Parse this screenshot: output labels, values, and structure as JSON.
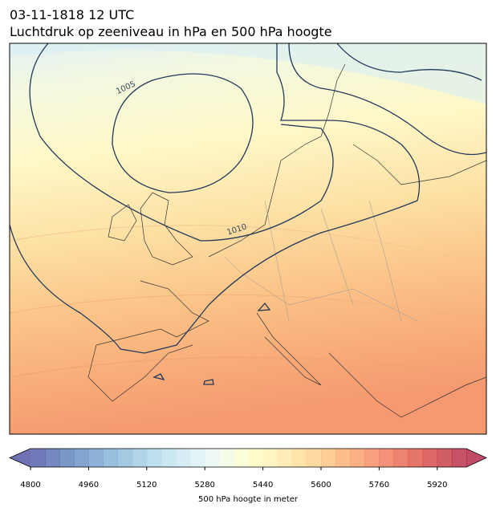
{
  "title": "03-11-1818 12 UTC",
  "subtitle": "Luchtdruk op zeeniveau in hPa en 500 hPa hoogte",
  "contour_labels": [
    "1005",
    "1010"
  ],
  "colorbar": {
    "label": "500 hPa hoogte in meter",
    "range": [
      4800,
      6000
    ],
    "ticks": [
      4800,
      4960,
      5120,
      5280,
      5440,
      5600,
      5760,
      5920
    ],
    "colors": [
      "#313695",
      "#4575b4",
      "#74add1",
      "#abd9e9",
      "#e0f3f8",
      "#ffffbf",
      "#fee090",
      "#fdae61",
      "#f46d43",
      "#d73027",
      "#a50026"
    ],
    "bands": 30,
    "opacity": 0.7
  }
}
